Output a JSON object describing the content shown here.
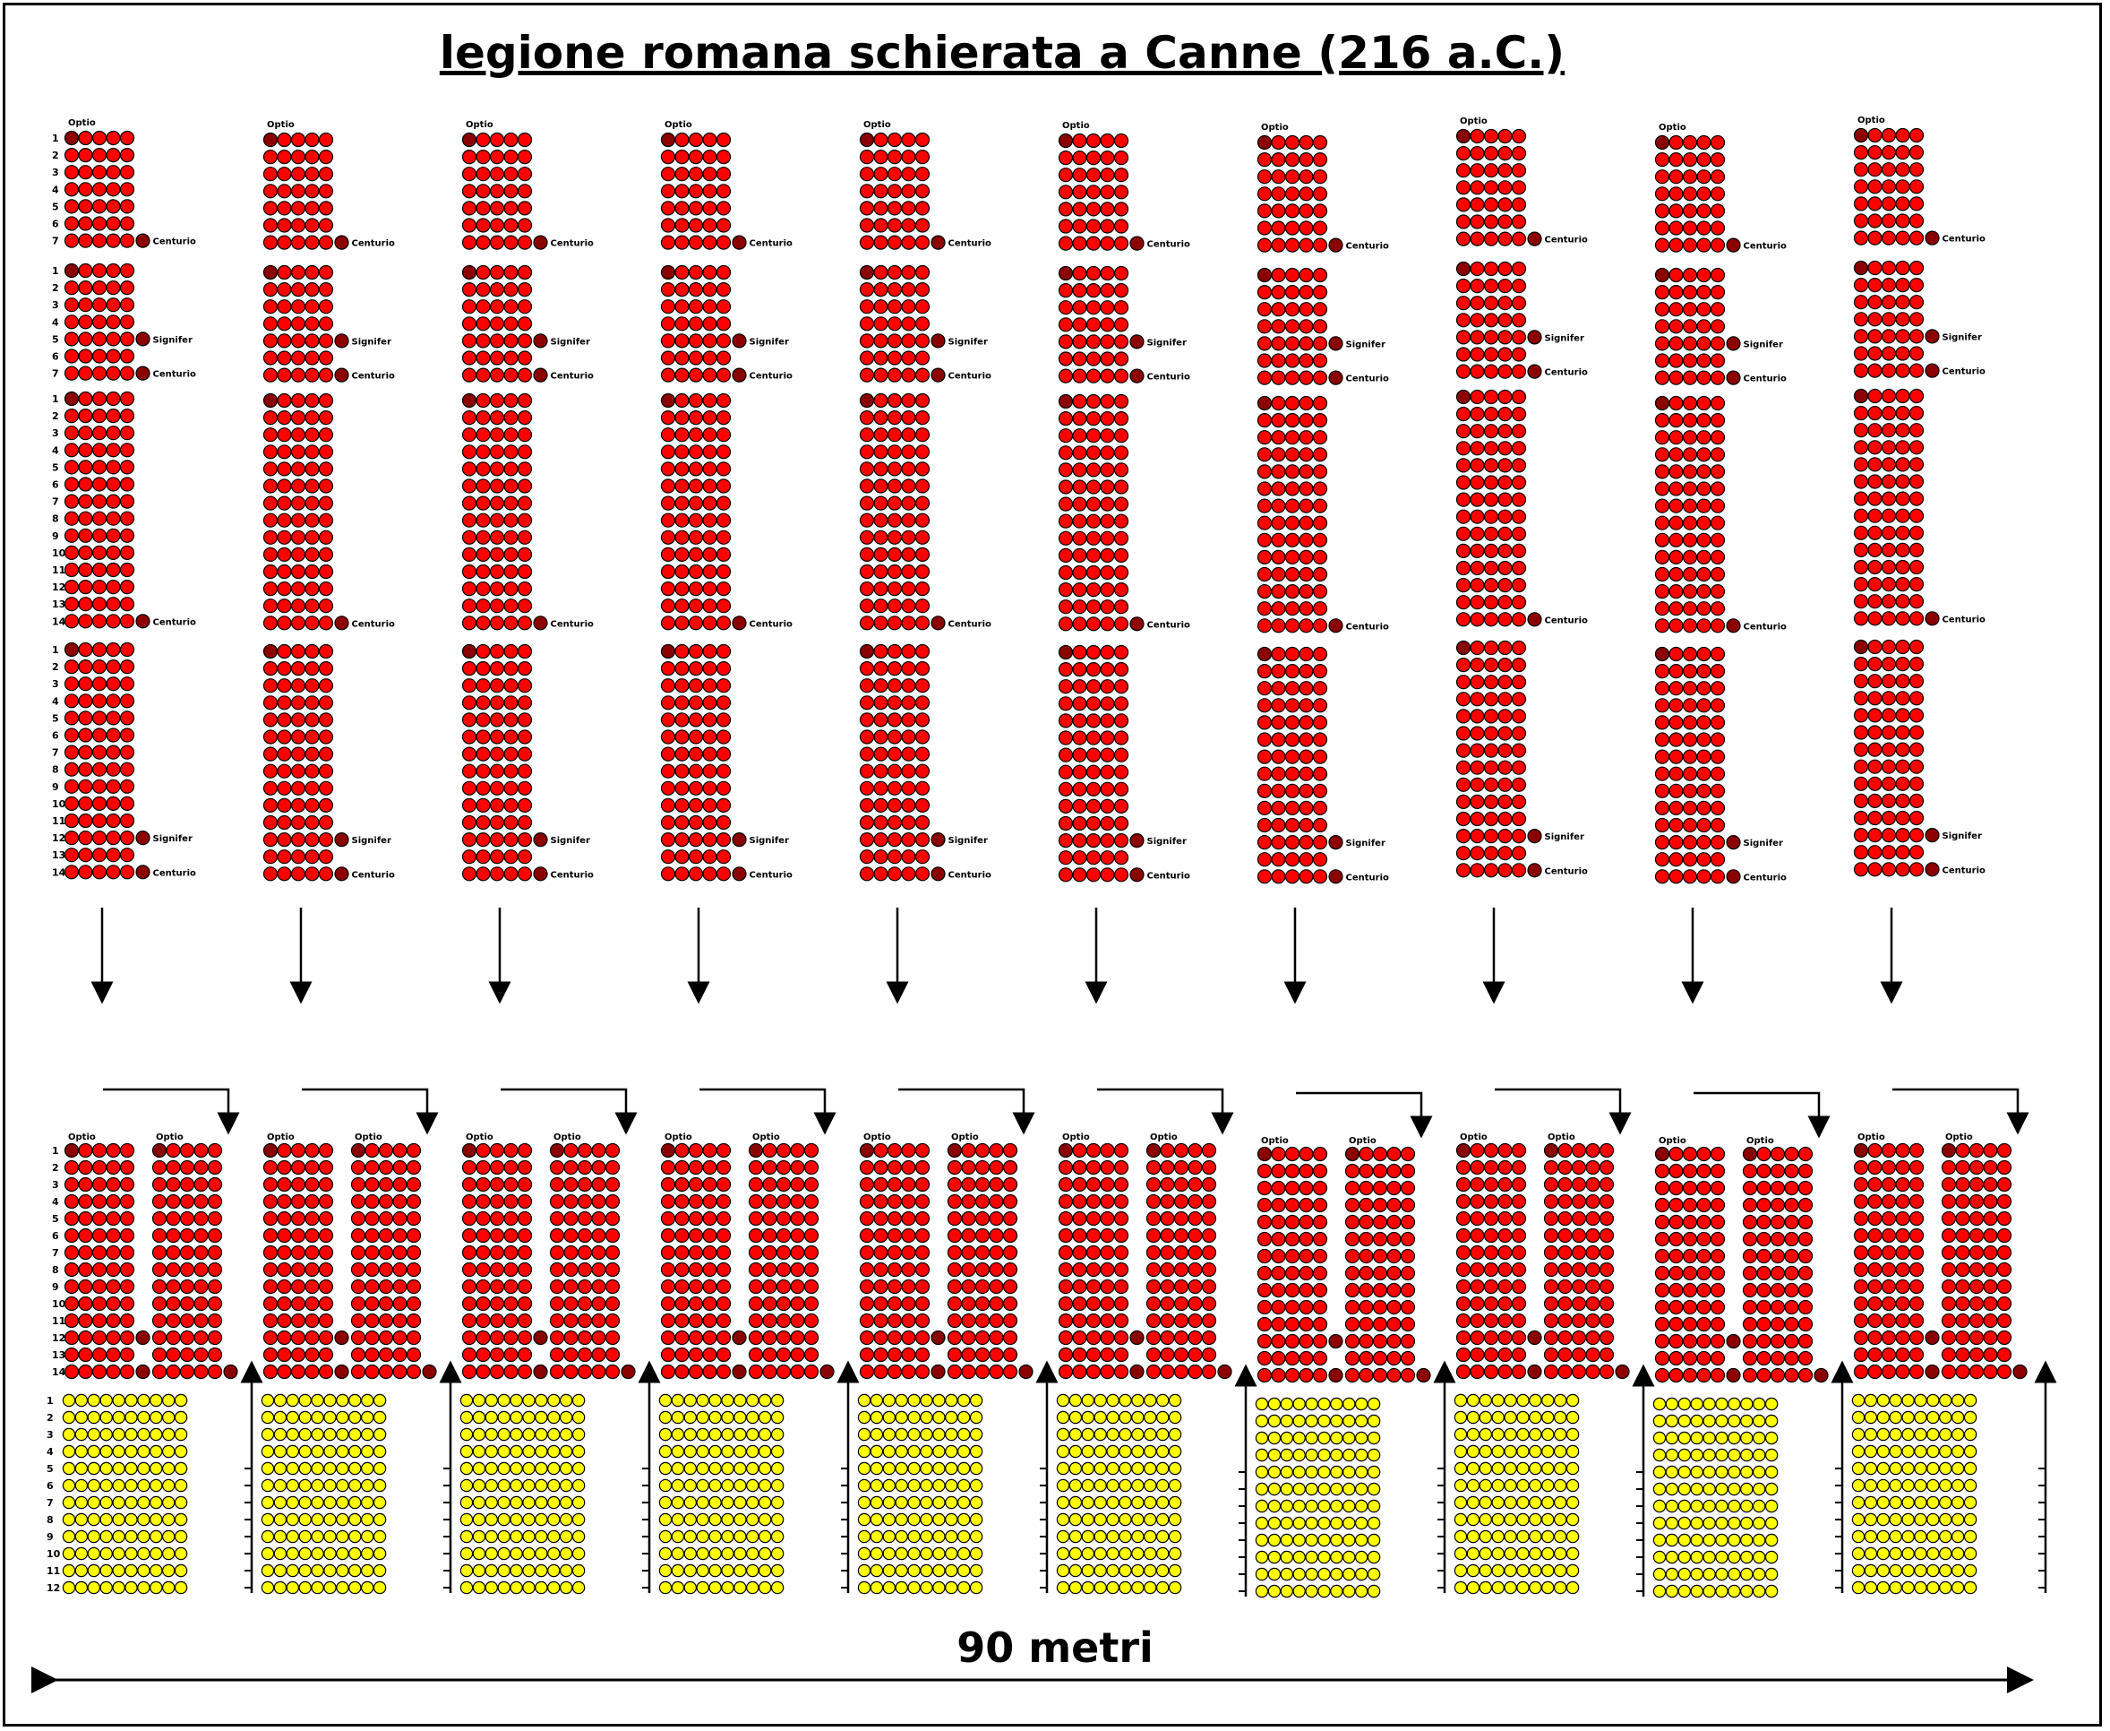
{
  "title": "legione romana schierata a Canne (216 a.C.)",
  "scale_label": "90 metri",
  "labels": {
    "optio": "Optio",
    "centurio": "Centurio",
    "signifer": "Signifer"
  },
  "top_formation": {
    "maniple_count": 10,
    "centuries": [
      {
        "rows": 7,
        "signifer_row": null,
        "centurio_row": 7
      },
      {
        "rows": 7,
        "signifer_row": 5,
        "centurio_row": 7
      },
      {
        "rows": 14,
        "signifer_row": null,
        "centurio_row": 14
      },
      {
        "rows": 14,
        "signifer_row": 12,
        "centurio_row": 14
      }
    ],
    "files_per_century": 5
  },
  "bottom_formation": {
    "red_rows": 14,
    "red_files_per_block": 5,
    "yellow_rows": 12,
    "yellow_files": 10
  },
  "colors": {
    "soldier": "#ff0000",
    "officer": "#8b0000",
    "light_infantry": "#ffff00",
    "outline": "#000000"
  }
}
